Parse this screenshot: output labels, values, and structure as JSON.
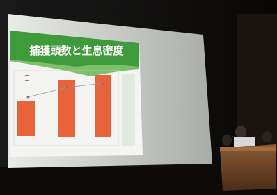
{
  "slide": {
    "title": "捕獲頭数と生息密度"
  }
}
